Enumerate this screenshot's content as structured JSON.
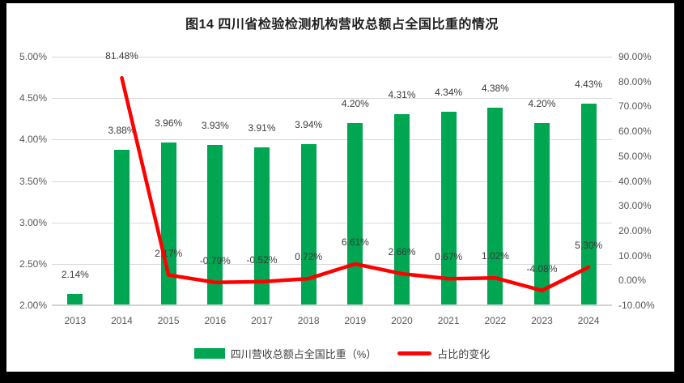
{
  "title": "图14  四川省检验检测机构营收总额占全国比重的情况",
  "legend": {
    "items": [
      {
        "label": "四川营收总额占全国比重（%）",
        "marker": "bar",
        "color": "#00A651"
      },
      {
        "label": "占比的变化",
        "marker": "line",
        "color": "#FF0000"
      }
    ]
  },
  "colors": {
    "bar_green": "#00A651",
    "line_red": "#FF0000",
    "gridline": "#D9D9D9",
    "axis_text": "#595959",
    "data_label_text": "#3B3B3B",
    "frame_border": "#000000",
    "background": "#FFFFFF"
  },
  "chart_data": {
    "type": "combo",
    "title": "图14  四川省检验检测机构营收总额占全国比重的情况",
    "categories": [
      "2013",
      "2014",
      "2015",
      "2016",
      "2017",
      "2018",
      "2019",
      "2020",
      "2021",
      "2022",
      "2023",
      "2024"
    ],
    "series": [
      {
        "name": "四川营收总额占全国比重（%）",
        "type": "bar",
        "axis": "left",
        "color": "#00A651",
        "values": [
          2.14,
          3.88,
          3.96,
          3.93,
          3.91,
          3.94,
          4.2,
          4.31,
          4.34,
          4.38,
          4.2,
          4.43
        ]
      },
      {
        "name": "占比的变化",
        "type": "line",
        "axis": "right",
        "color": "#FF0000",
        "values": [
          null,
          81.48,
          2.17,
          -0.79,
          -0.52,
          0.72,
          6.61,
          2.66,
          0.67,
          1.02,
          -4.08,
          5.3
        ]
      }
    ],
    "left_axis": {
      "min": 2.0,
      "max": 5.0,
      "step": 0.5,
      "format": "0.00%"
    },
    "right_axis": {
      "min": -10.0,
      "max": 90.0,
      "step": 10.0,
      "format": "0.00%"
    },
    "grid": true,
    "legend_position": "bottom",
    "data_labels": true
  }
}
